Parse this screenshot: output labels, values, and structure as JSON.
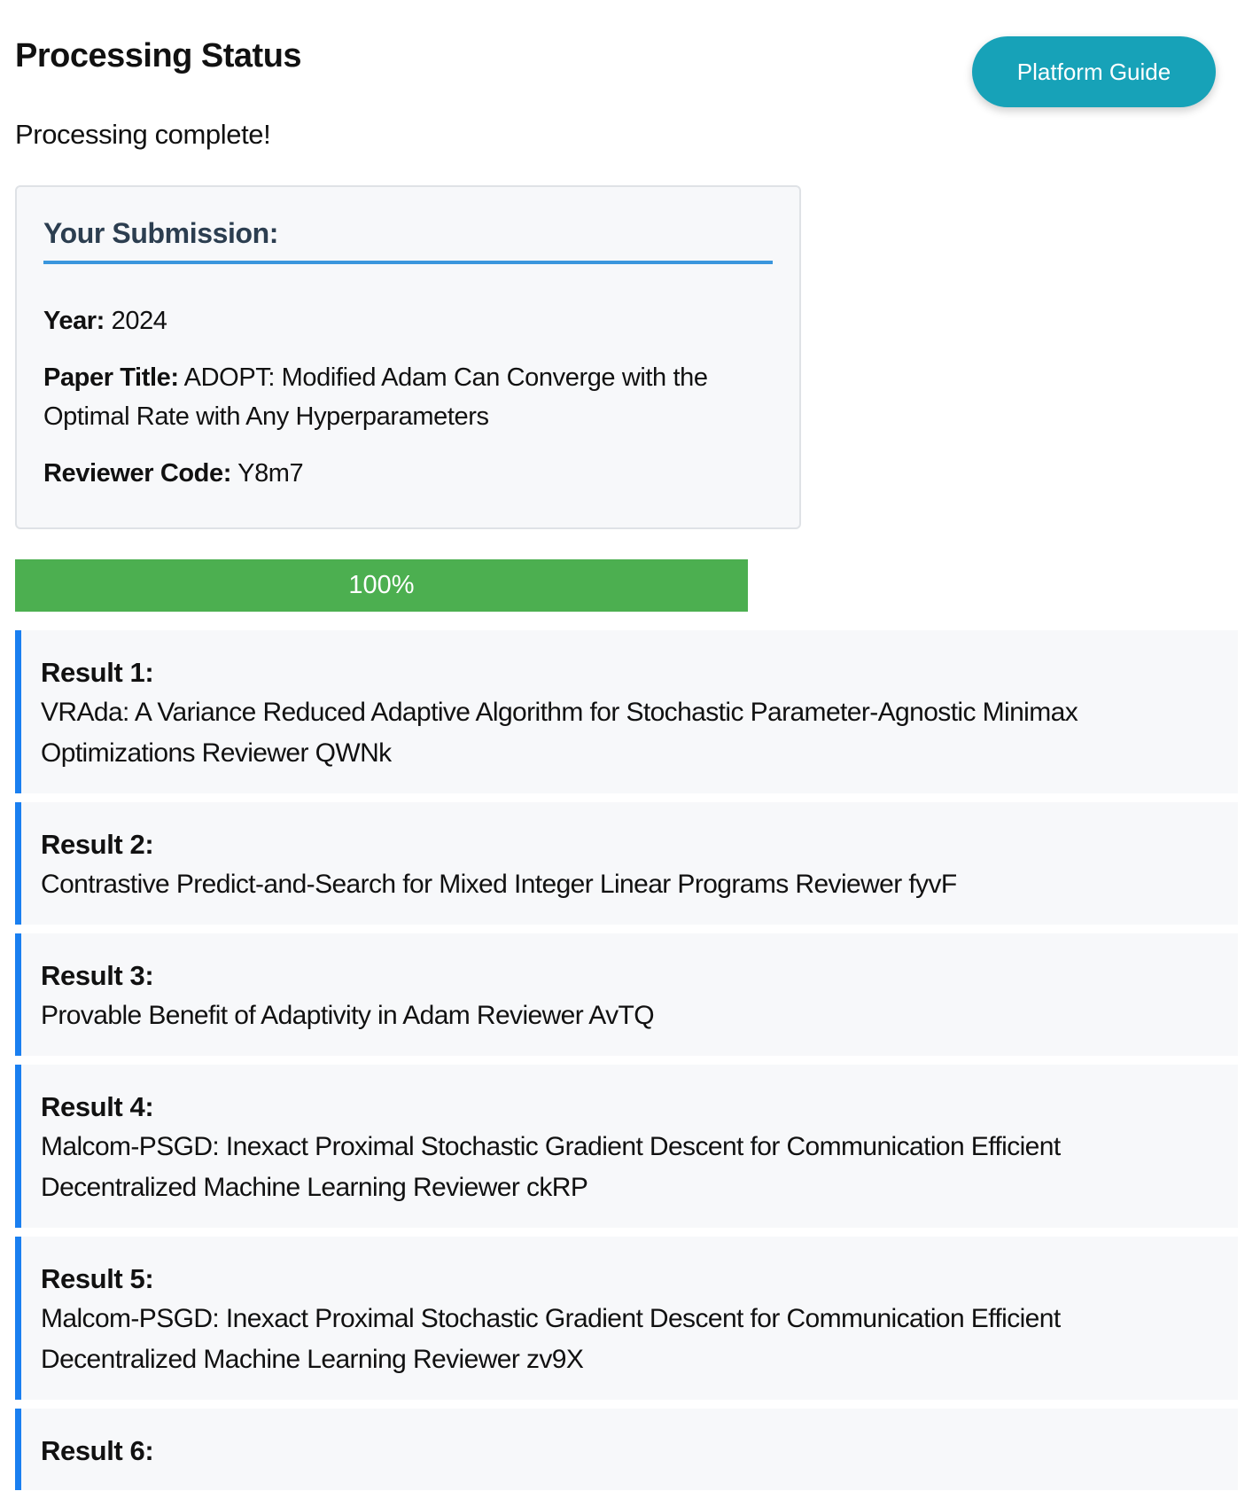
{
  "header": {
    "title": "Processing Status",
    "guide_button": "Platform Guide"
  },
  "status_text": "Processing complete!",
  "submission": {
    "heading": "Your Submission:",
    "year_label": "Year:",
    "year": "2024",
    "paper_title_label": "Paper Title:",
    "paper_title": "ADOPT: Modified Adam Can Converge with the Optimal Rate with Any Hyperparameters",
    "reviewer_code_label": "Reviewer Code:",
    "reviewer_code": "Y8m7"
  },
  "progress": {
    "value": 100,
    "label": "100%",
    "color": "#4caf50"
  },
  "results": [
    {
      "label": "Result 1:",
      "text": "VRAda: A Variance Reduced Adaptive Algorithm for Stochastic Parameter-Agnostic Minimax Optimizations Reviewer QWNk"
    },
    {
      "label": "Result 2:",
      "text": "Contrastive Predict-and-Search for Mixed Integer Linear Programs Reviewer fyvF"
    },
    {
      "label": "Result 3:",
      "text": "Provable Benefit of Adaptivity in Adam Reviewer AvTQ"
    },
    {
      "label": "Result 4:",
      "text": "Malcom-PSGD: Inexact Proximal Stochastic Gradient Descent for Communication Efficient Decentralized Machine Learning Reviewer ckRP"
    },
    {
      "label": "Result 5:",
      "text": "Malcom-PSGD: Inexact Proximal Stochastic Gradient Descent for Communication Efficient Decentralized Machine Learning Reviewer zv9X"
    },
    {
      "label": "Result 6:",
      "text": ""
    }
  ]
}
